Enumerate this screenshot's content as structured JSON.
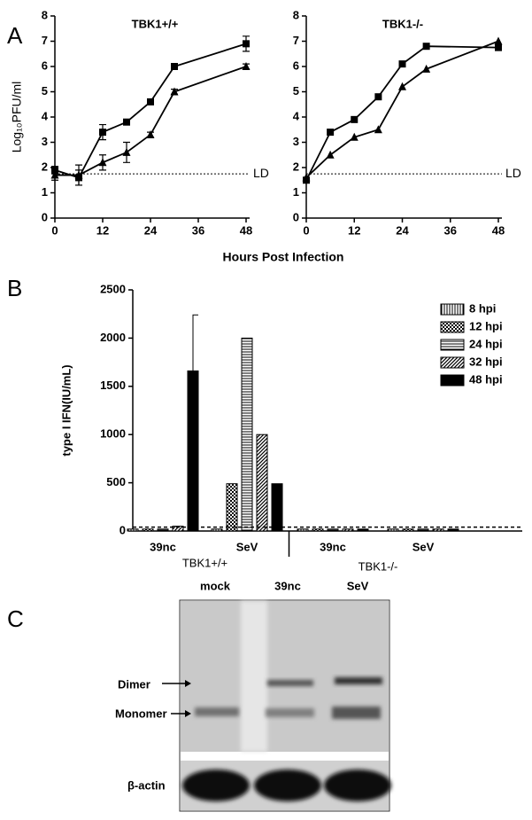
{
  "panel_labels": [
    "A",
    "B",
    "C"
  ],
  "shared_xlabel": "Hours Post Infection",
  "chart_data": [
    {
      "type": "line",
      "title": "TBK1+/+",
      "ylabel": "Log₁₀PFU/ml",
      "x": [
        0,
        6,
        12,
        18,
        24,
        30,
        48
      ],
      "xlim": [
        0,
        48
      ],
      "xticks": [
        0,
        12,
        24,
        36,
        48
      ],
      "ylim": [
        0,
        8
      ],
      "yticks": [
        0,
        1,
        2,
        3,
        4,
        5,
        6,
        7,
        8
      ],
      "reference_line": {
        "value": 1.75,
        "label": "LD"
      },
      "series": [
        {
          "marker": "square",
          "color": "#000000",
          "values": [
            1.9,
            1.6,
            3.4,
            3.8,
            4.6,
            6.0,
            6.9
          ],
          "errors": [
            0.15,
            0.3,
            0.3,
            0.1,
            0.1,
            0.1,
            0.3
          ]
        },
        {
          "marker": "triangle",
          "color": "#000000",
          "values": [
            1.7,
            1.7,
            2.2,
            2.6,
            3.3,
            5.0,
            6.0
          ],
          "errors": [
            0.2,
            0.4,
            0.3,
            0.4,
            0.1,
            0.1,
            0.1
          ]
        }
      ]
    },
    {
      "type": "line",
      "title": "TBK1-/-",
      "x": [
        0,
        6,
        12,
        18,
        24,
        30,
        48
      ],
      "xlim": [
        0,
        48
      ],
      "xticks": [
        0,
        12,
        24,
        36,
        48
      ],
      "ylim": [
        0,
        8
      ],
      "yticks": [
        0,
        1,
        2,
        3,
        4,
        5,
        6,
        7,
        8
      ],
      "reference_line": {
        "value": 1.75,
        "label": "LD"
      },
      "series": [
        {
          "marker": "square",
          "color": "#000000",
          "values": [
            1.5,
            3.4,
            3.9,
            4.8,
            6.1,
            6.8,
            6.75
          ]
        },
        {
          "marker": "triangle",
          "color": "#000000",
          "values": [
            1.6,
            2.5,
            3.2,
            3.5,
            5.2,
            5.9,
            7.0
          ]
        }
      ]
    },
    {
      "type": "bar",
      "ylabel": "type I IFN(IU/mL)",
      "categories": [
        "39nc",
        "SeV",
        "39nc",
        "SeV"
      ],
      "groups": [
        "TBK1+/+",
        "TBK1-/-"
      ],
      "ylim": [
        0,
        2500
      ],
      "yticks": [
        0,
        500,
        1000,
        1500,
        2000,
        2500
      ],
      "reference_line": {
        "value": 40
      },
      "legend": "top-right",
      "series": [
        {
          "name": "8 hpi",
          "color": "#000000",
          "pattern": "vertical",
          "values": [
            20,
            20,
            20,
            20
          ]
        },
        {
          "name": "12 hpi",
          "color": "#000000",
          "pattern": "checker",
          "values": [
            20,
            490,
            20,
            20
          ]
        },
        {
          "name": "24 hpi",
          "color": "#000000",
          "pattern": "horizontal",
          "values": [
            20,
            2000,
            20,
            20
          ]
        },
        {
          "name": "32 hpi",
          "color": "#000000",
          "pattern": "diagonal",
          "values": [
            50,
            1000,
            20,
            20
          ]
        },
        {
          "name": "48 hpi",
          "color": "#000000",
          "pattern": "solid",
          "values": [
            1660,
            490,
            20,
            20
          ],
          "errors": [
            580,
            null,
            null,
            null
          ]
        }
      ]
    }
  ],
  "blot": {
    "lanes": [
      "mock",
      "39nc",
      "SeV"
    ],
    "bands": [
      "Dimer",
      "Monomer"
    ],
    "loading": "β-actin"
  }
}
